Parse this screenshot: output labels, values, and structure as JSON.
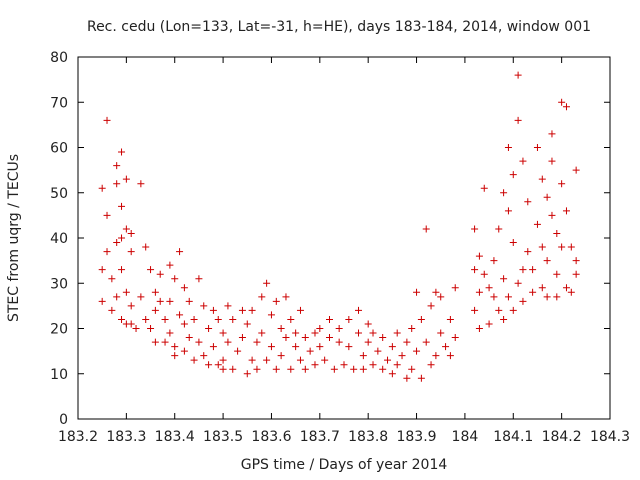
{
  "chart_data": {
    "type": "scatter",
    "title": "Rec. cedu (Lon=133, Lat=-31, h=HE), days 183-184, 2014, window 001",
    "xlabel": "GPS time / Days of year 2014",
    "ylabel": "STEC from uqrg / TECUs",
    "xlim": [
      183.2,
      184.3
    ],
    "ylim": [
      0,
      80
    ],
    "xticks": [
      "183.2",
      "183.3",
      "183.4",
      "183.5",
      "183.6",
      "183.7",
      "183.8",
      "183.9",
      "184",
      "184.1",
      "184.2",
      "184.3"
    ],
    "yticks": [
      "0",
      "10",
      "20",
      "30",
      "40",
      "50",
      "60",
      "70",
      "80"
    ],
    "grid": false,
    "legend": "none",
    "marker": "+",
    "color": "#cc0000",
    "points": [
      [
        183.25,
        26
      ],
      [
        183.25,
        33
      ],
      [
        183.25,
        51
      ],
      [
        183.26,
        45
      ],
      [
        183.26,
        37
      ],
      [
        183.26,
        66
      ],
      [
        183.27,
        24
      ],
      [
        183.27,
        31
      ],
      [
        183.28,
        52
      ],
      [
        183.28,
        56
      ],
      [
        183.28,
        39
      ],
      [
        183.28,
        27
      ],
      [
        183.29,
        59
      ],
      [
        183.29,
        47
      ],
      [
        183.29,
        40
      ],
      [
        183.29,
        33
      ],
      [
        183.29,
        22
      ],
      [
        183.3,
        53
      ],
      [
        183.3,
        42
      ],
      [
        183.3,
        28
      ],
      [
        183.3,
        21
      ],
      [
        183.31,
        41
      ],
      [
        183.31,
        37
      ],
      [
        183.31,
        25
      ],
      [
        183.31,
        21
      ],
      [
        183.32,
        20
      ],
      [
        183.33,
        52
      ],
      [
        183.33,
        27
      ],
      [
        183.34,
        38
      ],
      [
        183.34,
        22
      ],
      [
        183.35,
        33
      ],
      [
        183.35,
        20
      ],
      [
        183.36,
        28
      ],
      [
        183.36,
        24
      ],
      [
        183.36,
        17
      ],
      [
        183.37,
        32
      ],
      [
        183.37,
        26
      ],
      [
        183.38,
        22
      ],
      [
        183.38,
        17
      ],
      [
        183.39,
        34
      ],
      [
        183.39,
        26
      ],
      [
        183.39,
        19
      ],
      [
        183.4,
        31
      ],
      [
        183.4,
        16
      ],
      [
        183.4,
        14
      ],
      [
        183.41,
        37
      ],
      [
        183.41,
        23
      ],
      [
        183.42,
        29
      ],
      [
        183.42,
        21
      ],
      [
        183.42,
        15
      ],
      [
        183.43,
        26
      ],
      [
        183.43,
        18
      ],
      [
        183.44,
        13
      ],
      [
        183.44,
        22
      ],
      [
        183.45,
        31
      ],
      [
        183.45,
        17
      ],
      [
        183.46,
        25
      ],
      [
        183.46,
        14
      ],
      [
        183.47,
        12
      ],
      [
        183.47,
        20
      ],
      [
        183.48,
        24
      ],
      [
        183.48,
        16
      ],
      [
        183.49,
        12
      ],
      [
        183.49,
        22
      ],
      [
        183.5,
        19
      ],
      [
        183.5,
        13
      ],
      [
        183.5,
        11
      ],
      [
        183.51,
        25
      ],
      [
        183.51,
        17
      ],
      [
        183.52,
        22
      ],
      [
        183.52,
        11
      ],
      [
        183.53,
        15
      ],
      [
        183.54,
        24
      ],
      [
        183.54,
        18
      ],
      [
        183.55,
        10
      ],
      [
        183.55,
        21
      ],
      [
        183.56,
        13
      ],
      [
        183.56,
        24
      ],
      [
        183.57,
        17
      ],
      [
        183.57,
        11
      ],
      [
        183.58,
        19
      ],
      [
        183.58,
        27
      ],
      [
        183.59,
        30
      ],
      [
        183.59,
        13
      ],
      [
        183.6,
        23
      ],
      [
        183.6,
        16
      ],
      [
        183.61,
        11
      ],
      [
        183.61,
        26
      ],
      [
        183.62,
        20
      ],
      [
        183.62,
        14
      ],
      [
        183.63,
        27
      ],
      [
        183.63,
        18
      ],
      [
        183.64,
        11
      ],
      [
        183.64,
        22
      ],
      [
        183.65,
        16
      ],
      [
        183.65,
        19
      ],
      [
        183.66,
        13
      ],
      [
        183.66,
        24
      ],
      [
        183.67,
        18
      ],
      [
        183.67,
        11
      ],
      [
        183.68,
        15
      ],
      [
        183.69,
        19
      ],
      [
        183.69,
        12
      ],
      [
        183.7,
        16
      ],
      [
        183.7,
        20
      ],
      [
        183.71,
        13
      ],
      [
        183.72,
        18
      ],
      [
        183.72,
        22
      ],
      [
        183.73,
        11
      ],
      [
        183.74,
        17
      ],
      [
        183.74,
        20
      ],
      [
        183.75,
        12
      ],
      [
        183.76,
        22
      ],
      [
        183.76,
        16
      ],
      [
        183.77,
        11
      ],
      [
        183.78,
        24
      ],
      [
        183.78,
        19
      ],
      [
        183.79,
        14
      ],
      [
        183.79,
        11
      ],
      [
        183.8,
        21
      ],
      [
        183.8,
        17
      ],
      [
        183.81,
        12
      ],
      [
        183.81,
        19
      ],
      [
        183.82,
        15
      ],
      [
        183.83,
        11
      ],
      [
        183.83,
        18
      ],
      [
        183.84,
        13
      ],
      [
        183.85,
        16
      ],
      [
        183.85,
        10
      ],
      [
        183.86,
        19
      ],
      [
        183.86,
        12
      ],
      [
        183.87,
        14
      ],
      [
        183.88,
        9
      ],
      [
        183.88,
        17
      ],
      [
        183.89,
        11
      ],
      [
        183.89,
        20
      ],
      [
        183.9,
        15
      ],
      [
        183.9,
        28
      ],
      [
        183.91,
        9
      ],
      [
        183.91,
        22
      ],
      [
        183.92,
        42
      ],
      [
        183.92,
        17
      ],
      [
        183.93,
        12
      ],
      [
        183.93,
        25
      ],
      [
        183.94,
        28
      ],
      [
        183.94,
        14
      ],
      [
        183.95,
        19
      ],
      [
        183.95,
        27
      ],
      [
        183.96,
        16
      ],
      [
        183.97,
        22
      ],
      [
        183.97,
        14
      ],
      [
        183.98,
        29
      ],
      [
        183.98,
        18
      ],
      [
        184.02,
        42
      ],
      [
        184.02,
        33
      ],
      [
        184.02,
        24
      ],
      [
        184.03,
        36
      ],
      [
        184.03,
        28
      ],
      [
        184.03,
        20
      ],
      [
        184.04,
        51
      ],
      [
        184.04,
        32
      ],
      [
        184.05,
        29
      ],
      [
        184.05,
        21
      ],
      [
        184.06,
        35
      ],
      [
        184.06,
        27
      ],
      [
        184.07,
        42
      ],
      [
        184.07,
        24
      ],
      [
        184.08,
        50
      ],
      [
        184.08,
        31
      ],
      [
        184.08,
        22
      ],
      [
        184.09,
        60
      ],
      [
        184.09,
        46
      ],
      [
        184.09,
        27
      ],
      [
        184.1,
        54
      ],
      [
        184.1,
        39
      ],
      [
        184.1,
        24
      ],
      [
        184.11,
        76
      ],
      [
        184.11,
        66
      ],
      [
        184.11,
        30
      ],
      [
        184.12,
        57
      ],
      [
        184.12,
        33
      ],
      [
        184.12,
        26
      ],
      [
        184.13,
        48
      ],
      [
        184.13,
        37
      ],
      [
        184.14,
        33
      ],
      [
        184.14,
        28
      ],
      [
        184.15,
        60
      ],
      [
        184.15,
        43
      ],
      [
        184.16,
        53
      ],
      [
        184.16,
        38
      ],
      [
        184.16,
        29
      ],
      [
        184.17,
        49
      ],
      [
        184.17,
        35
      ],
      [
        184.17,
        27
      ],
      [
        184.18,
        63
      ],
      [
        184.18,
        57
      ],
      [
        184.18,
        45
      ],
      [
        184.19,
        41
      ],
      [
        184.19,
        32
      ],
      [
        184.19,
        27
      ],
      [
        184.2,
        70
      ],
      [
        184.2,
        52
      ],
      [
        184.2,
        38
      ],
      [
        184.21,
        69
      ],
      [
        184.21,
        46
      ],
      [
        184.21,
        29
      ],
      [
        184.22,
        38
      ],
      [
        184.22,
        28
      ],
      [
        184.23,
        55
      ],
      [
        184.23,
        35
      ],
      [
        184.23,
        32
      ]
    ]
  }
}
